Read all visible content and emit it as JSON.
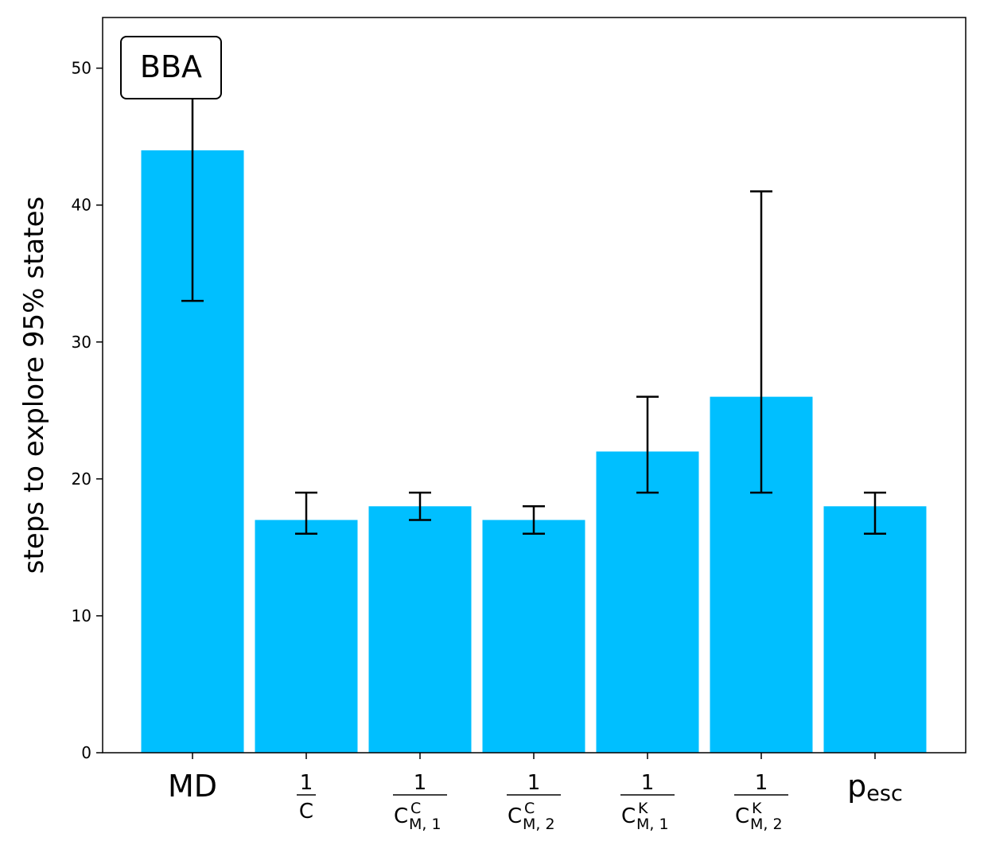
{
  "chart_data": {
    "type": "bar",
    "title": "",
    "xlabel": "",
    "ylabel": "steps to explore 95% states",
    "annotation": "BBA",
    "ylim": [
      0,
      53.7
    ],
    "yticks": [
      0,
      10,
      20,
      30,
      40,
      50
    ],
    "grid": false,
    "bar_color": "#00BFFF",
    "categories": [
      {
        "kind": "text",
        "main": "MD",
        "sub": ""
      },
      {
        "kind": "frac",
        "num": "1",
        "den": "C",
        "sup": "",
        "sub": ""
      },
      {
        "kind": "frac",
        "num": "1",
        "den": "C",
        "sup": "C",
        "sub": "M, 1"
      },
      {
        "kind": "frac",
        "num": "1",
        "den": "C",
        "sup": "C",
        "sub": "M, 2"
      },
      {
        "kind": "frac",
        "num": "1",
        "den": "C",
        "sup": "K",
        "sub": "M, 1"
      },
      {
        "kind": "frac",
        "num": "1",
        "den": "C",
        "sup": "K",
        "sub": "M, 2"
      },
      {
        "kind": "text",
        "main": "p",
        "sub": "esc"
      }
    ],
    "values": [
      44,
      17,
      18,
      17,
      22,
      26,
      18
    ],
    "error_low": [
      33,
      16,
      17,
      16,
      19,
      19,
      16
    ],
    "error_high": [
      48,
      19,
      19,
      18,
      26,
      41,
      19
    ]
  }
}
